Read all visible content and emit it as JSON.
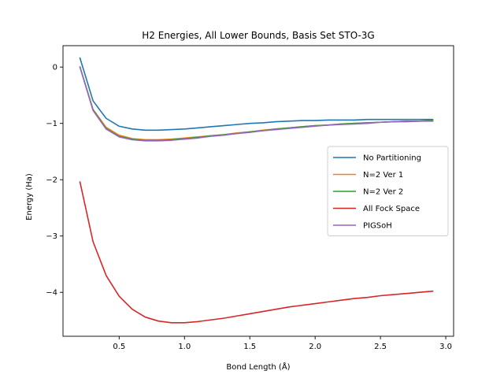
{
  "chart_data": {
    "type": "line",
    "title": "H2 Energies, All Lower Bounds, Basis Set STO-3G",
    "xlabel": "Bond Length (Å)",
    "ylabel": "Energy (Ha)",
    "xlim": [
      0.07,
      3.06
    ],
    "ylim": [
      -4.78,
      0.38
    ],
    "xticks": [
      0.5,
      1.0,
      1.5,
      2.0,
      2.5,
      3.0
    ],
    "xtick_labels": [
      "0.5",
      "1.0",
      "1.5",
      "2.0",
      "2.5",
      "3.0"
    ],
    "yticks": [
      0,
      -1,
      -2,
      -3,
      -4
    ],
    "ytick_labels": [
      "0",
      "−1",
      "−2",
      "−3",
      "−4"
    ],
    "grid": false,
    "legend_position": "center-right",
    "x": [
      0.2,
      0.3,
      0.4,
      0.5,
      0.6,
      0.7,
      0.8,
      0.9,
      1.0,
      1.1,
      1.2,
      1.3,
      1.4,
      1.5,
      1.6,
      1.7,
      1.8,
      1.9,
      2.0,
      2.1,
      2.2,
      2.3,
      2.4,
      2.5,
      2.6,
      2.7,
      2.8,
      2.9
    ],
    "series": [
      {
        "name": "No Partitioning",
        "color": "#1f77b4",
        "values": [
          0.16,
          -0.6,
          -0.91,
          -1.05,
          -1.1,
          -1.12,
          -1.12,
          -1.11,
          -1.1,
          -1.08,
          -1.06,
          -1.04,
          -1.02,
          -1.0,
          -0.99,
          -0.97,
          -0.96,
          -0.95,
          -0.95,
          -0.94,
          -0.94,
          -0.94,
          -0.93,
          -0.93,
          -0.93,
          -0.93,
          -0.93,
          -0.93
        ]
      },
      {
        "name": "N=2 Ver 1",
        "color": "#ff7f0e",
        "values": [
          0.0,
          -0.75,
          -1.07,
          -1.21,
          -1.27,
          -1.29,
          -1.29,
          -1.28,
          -1.26,
          -1.24,
          -1.22,
          -1.2,
          -1.17,
          -1.15,
          -1.12,
          -1.1,
          -1.08,
          -1.06,
          -1.04,
          -1.03,
          -1.01,
          -1.0,
          -0.99,
          -0.98,
          -0.97,
          -0.96,
          -0.96,
          -0.95
        ]
      },
      {
        "name": "N=2 Ver 2",
        "color": "#2ca02c",
        "values": [
          0.0,
          -0.76,
          -1.09,
          -1.23,
          -1.28,
          -1.3,
          -1.3,
          -1.29,
          -1.27,
          -1.25,
          -1.22,
          -1.2,
          -1.18,
          -1.15,
          -1.13,
          -1.1,
          -1.08,
          -1.06,
          -1.04,
          -1.03,
          -1.01,
          -1.0,
          -0.99,
          -0.98,
          -0.97,
          -0.96,
          -0.96,
          -0.95
        ]
      },
      {
        "name": "All Fock Space",
        "color": "#d62728",
        "values": [
          -2.04,
          -3.1,
          -3.7,
          -4.07,
          -4.3,
          -4.44,
          -4.51,
          -4.54,
          -4.54,
          -4.52,
          -4.49,
          -4.46,
          -4.42,
          -4.38,
          -4.34,
          -4.3,
          -4.26,
          -4.23,
          -4.2,
          -4.17,
          -4.14,
          -4.11,
          -4.09,
          -4.06,
          -4.04,
          -4.02,
          -4.0,
          -3.98
        ]
      },
      {
        "name": "PIGSoH",
        "color": "#9467bd",
        "values": [
          0.0,
          -0.77,
          -1.1,
          -1.24,
          -1.29,
          -1.31,
          -1.31,
          -1.3,
          -1.28,
          -1.26,
          -1.23,
          -1.21,
          -1.18,
          -1.16,
          -1.13,
          -1.11,
          -1.09,
          -1.07,
          -1.05,
          -1.03,
          -1.02,
          -1.01,
          -1.0,
          -0.98,
          -0.97,
          -0.97,
          -0.96,
          -0.96
        ]
      }
    ]
  }
}
